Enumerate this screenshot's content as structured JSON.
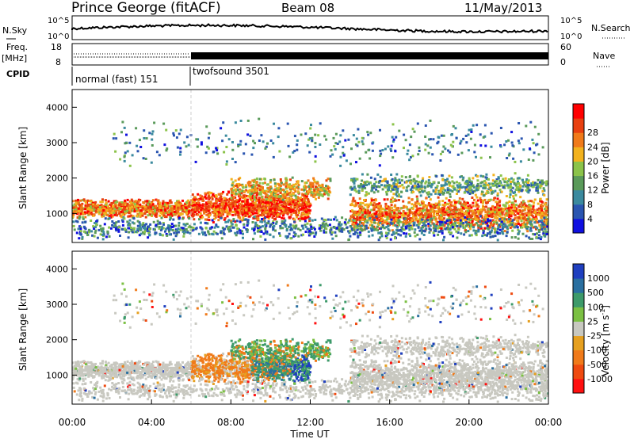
{
  "header": {
    "site": "Prince George (fitACF)",
    "beam": "Beam 08",
    "date": "11/May/2013"
  },
  "sky_panel": {
    "left_label": "N.Sky",
    "right_label": "N.Search",
    "left_top": "10^5",
    "left_bottom": "10^0",
    "right_top": "10^5",
    "right_bottom": "10^0"
  },
  "freq_panel": {
    "left_label_1": "Freq.",
    "left_label_2": "[MHz]",
    "left_top": "18",
    "left_bottom": "8",
    "right_label": "Nave",
    "right_top": "60",
    "right_bottom": "0"
  },
  "cpid_panel": {
    "label": "CPID",
    "mode_1": "normal (fast) 151",
    "mode_2": "twofsound 3501"
  },
  "chart_data": [
    {
      "type": "heatmap",
      "quantity": "Power",
      "ylabel": "Slant Range [km]",
      "ylim": [
        180,
        4500
      ],
      "yticks": [
        1000,
        2000,
        3000,
        4000
      ],
      "xlim": [
        "00:00",
        "24:00"
      ],
      "colorbar_label": "Power [dB]",
      "colorbar_ticks": [
        "4",
        "8",
        "12",
        "16",
        "20",
        "24",
        "28"
      ],
      "colors": [
        "#1010e0",
        "#2a55b0",
        "#3b8a9e",
        "#5a9a5a",
        "#8bc34a",
        "#f2b21e",
        "#f07a1a",
        "#e84010",
        "#ff0000"
      ]
    },
    {
      "type": "heatmap",
      "quantity": "Velocity",
      "ylabel": "Slant Range [km]",
      "ylim": [
        180,
        4500
      ],
      "yticks": [
        1000,
        2000,
        3000,
        4000
      ],
      "xlim": [
        "00:00",
        "24:00"
      ],
      "xlabel": "Time UT",
      "xticks": [
        "00:00",
        "04:00",
        "08:00",
        "12:00",
        "16:00",
        "20:00",
        "00:00"
      ],
      "colorbar_label": "Velocity [m s^-1]",
      "colorbar_ticks": [
        "1000",
        "500",
        "100",
        "25",
        "-25",
        "-100",
        "-500",
        "-1000"
      ],
      "colors": [
        "#1f3fbf",
        "#2a6fa0",
        "#3d9a6a",
        "#7bc043",
        "#c8c8c0",
        "#e6a020",
        "#f07a1a",
        "#ee4a10",
        "#ff1010"
      ]
    }
  ]
}
